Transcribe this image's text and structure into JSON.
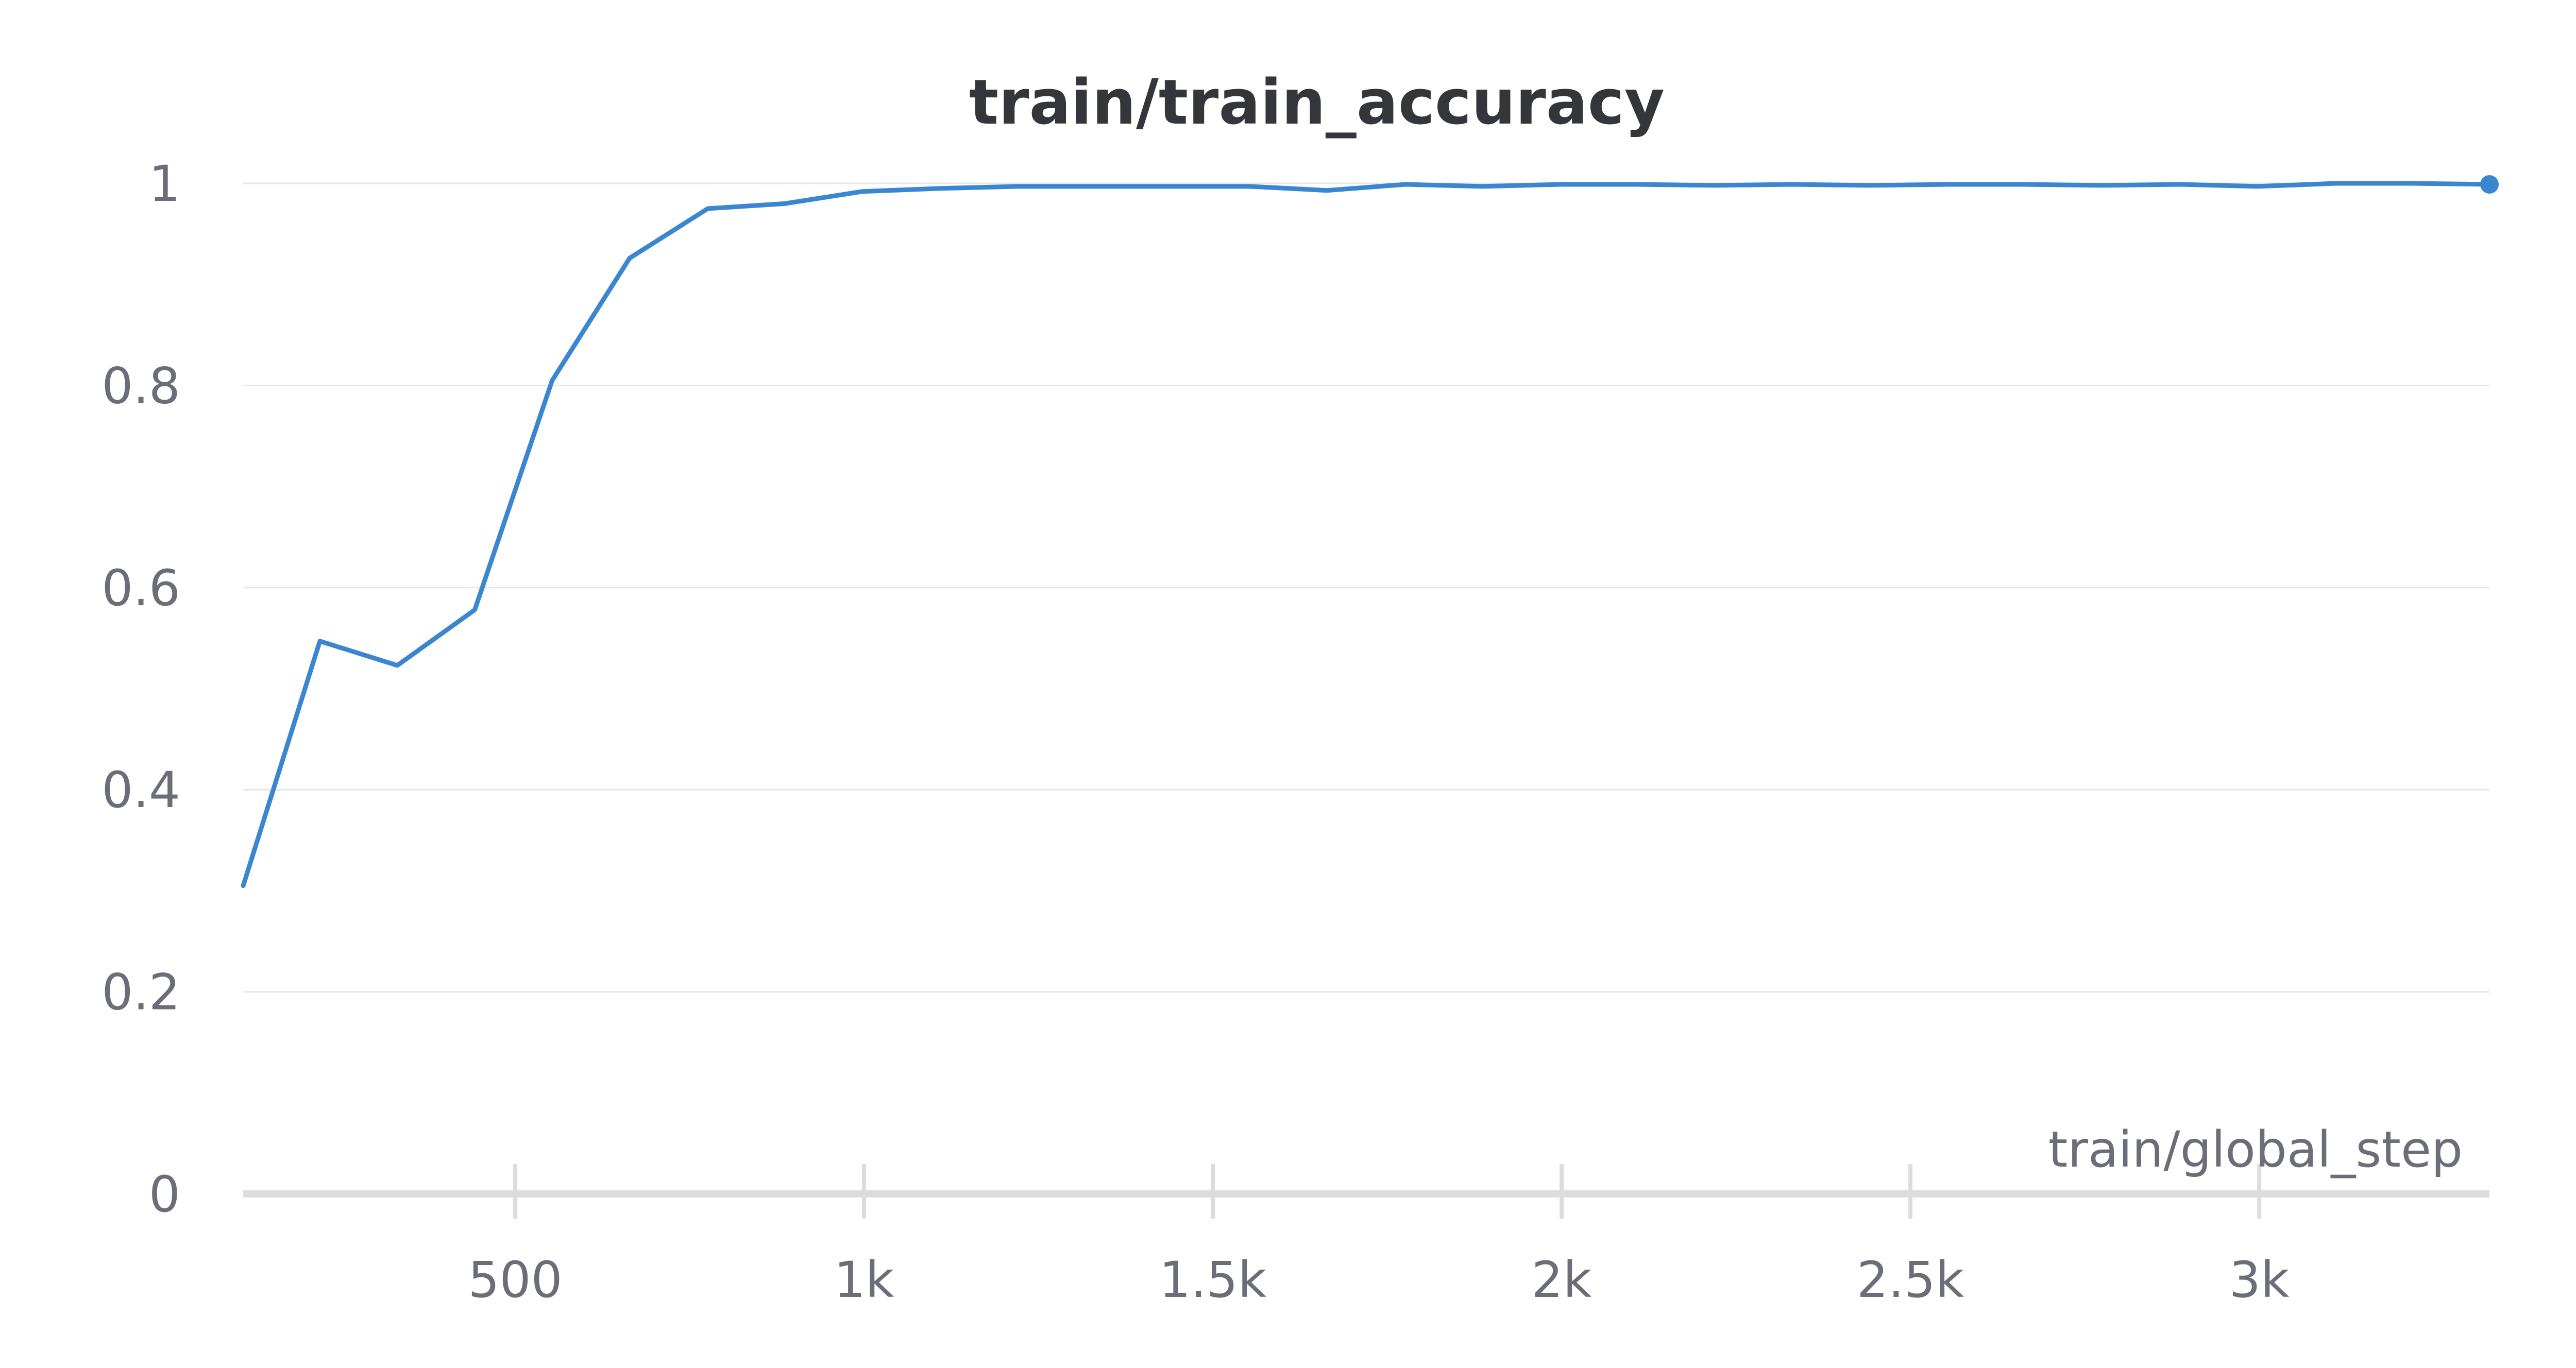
{
  "chart_data": {
    "type": "line",
    "title": "train/train_accuracy",
    "xlabel": "train/global_step",
    "ylabel": "",
    "xlim": [
      110,
      3330
    ],
    "ylim": [
      0,
      1
    ],
    "x_ticks": [
      {
        "value": 500,
        "label": "500"
      },
      {
        "value": 1000,
        "label": "1k"
      },
      {
        "value": 1500,
        "label": "1.5k"
      },
      {
        "value": 2000,
        "label": "2k"
      },
      {
        "value": 2500,
        "label": "2.5k"
      },
      {
        "value": 3000,
        "label": "3k"
      }
    ],
    "y_ticks": [
      {
        "value": 0,
        "label": "0"
      },
      {
        "value": 0.2,
        "label": "0.2"
      },
      {
        "value": 0.4,
        "label": "0.4"
      },
      {
        "value": 0.6,
        "label": "0.6"
      },
      {
        "value": 0.8,
        "label": "0.8"
      },
      {
        "value": 1,
        "label": "1"
      }
    ],
    "grid": true,
    "legend": "none",
    "series": [
      {
        "color": "#3a86d0",
        "x": [
          110,
          220,
          331,
          442,
          553,
          664,
          776,
          887,
          998,
          1109,
          1220,
          1331,
          1442,
          1553,
          1664,
          1776,
          1887,
          1998,
          2109,
          2220,
          2331,
          2442,
          2553,
          2664,
          2776,
          2887,
          2998,
          3109,
          3220,
          3330
        ],
        "y": [
          0.305,
          0.547,
          0.523,
          0.578,
          0.805,
          0.926,
          0.975,
          0.98,
          0.992,
          0.995,
          0.997,
          0.997,
          0.997,
          0.997,
          0.993,
          0.999,
          0.997,
          0.999,
          0.999,
          0.998,
          0.999,
          0.998,
          0.999,
          0.999,
          0.998,
          0.999,
          0.997,
          1.0,
          1.0,
          0.999
        ]
      }
    ]
  }
}
